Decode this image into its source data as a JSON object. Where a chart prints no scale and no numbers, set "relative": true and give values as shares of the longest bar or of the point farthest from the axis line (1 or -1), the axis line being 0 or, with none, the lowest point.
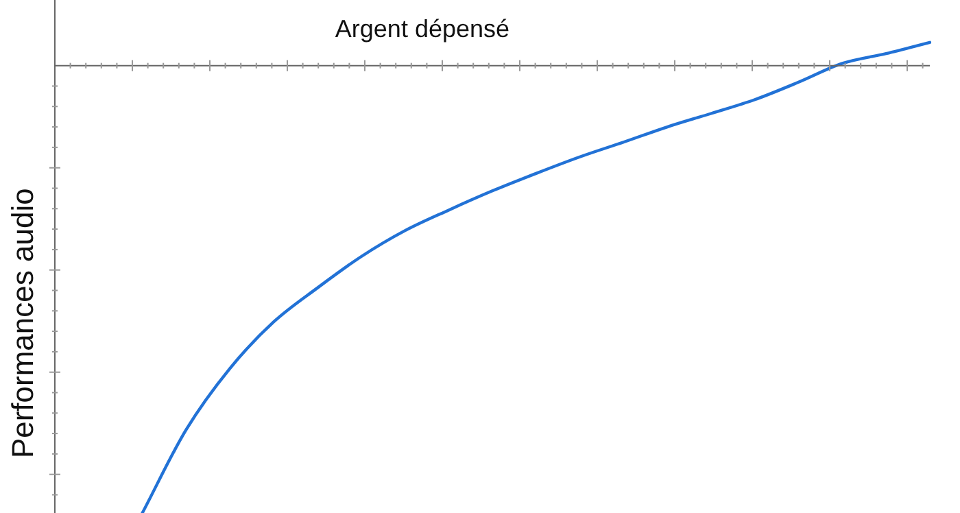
{
  "chart_data": {
    "type": "line",
    "xlabel": "Argent dépensé",
    "ylabel": "Performances audio",
    "relative": true,
    "marker": "none",
    "line_style": "solid",
    "categories": [
      null,
      null,
      null,
      null,
      null,
      null,
      null,
      null,
      null,
      null,
      null,
      null,
      null,
      null,
      null,
      null,
      null,
      null,
      null,
      null,
      null
    ],
    "series": [
      {
        "color": "#2272d6",
        "values": [
          null,
          null,
          -1,
          -0.814,
          -0.677,
          -0.573,
          -0.497,
          -0.427,
          -0.369,
          -0.323,
          -0.28,
          -0.241,
          -0.204,
          -0.171,
          -0.137,
          -0.107,
          -0.076,
          -0.037,
          0.005,
          0.027,
          0.052
        ]
      }
    ]
  }
}
